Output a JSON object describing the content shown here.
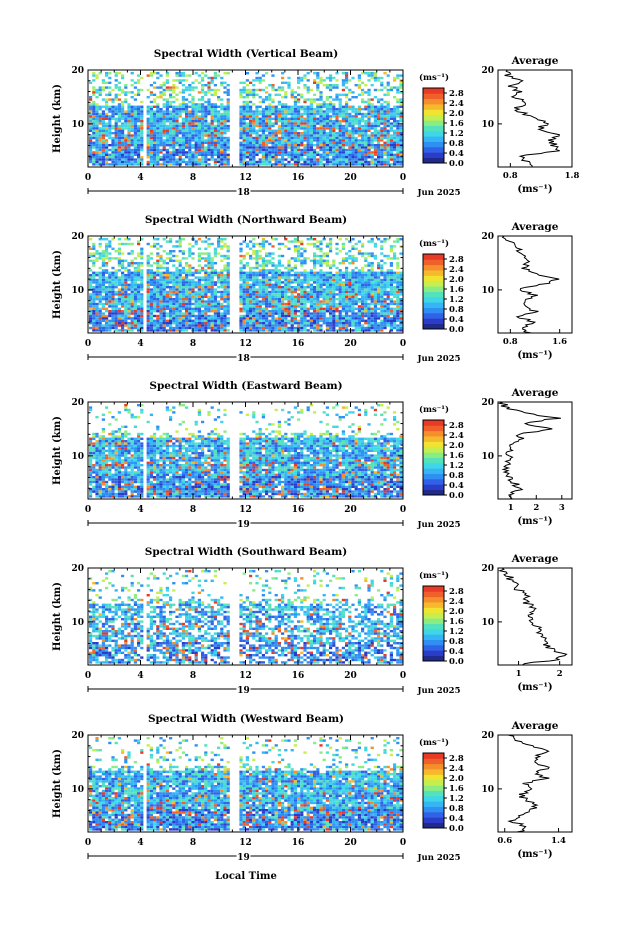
{
  "figure": {
    "x_label": "Local Time",
    "y_label": "Height (km)",
    "date_label": "Jun 2025",
    "x_ticks": [
      "0",
      "4",
      "8",
      "12",
      "16",
      "20",
      "0"
    ],
    "y_ticks": [
      "20",
      "10"
    ],
    "colorbar_unit": "(ms⁻¹)",
    "colorbar_ticks": [
      "2.8",
      "2.4",
      "2.0",
      "1.6",
      "1.2",
      "0.8",
      "0.4",
      "0.0"
    ],
    "colorbar_colors": [
      "#1f2a8a",
      "#2a3cc8",
      "#2f62e6",
      "#2f8ff2",
      "#35b5f4",
      "#3fd6e8",
      "#54e2bd",
      "#8cec84",
      "#c6ee4e",
      "#f0e433",
      "#f7b92c",
      "#f58f2b",
      "#f0602a",
      "#e83a26"
    ],
    "date_marker_values": [
      "18",
      "18",
      "19",
      "19",
      "19"
    ],
    "avg_title": "Average",
    "avg_unit": "(ms⁻¹)",
    "avg_y_ticks": [
      "20",
      "10"
    ]
  },
  "chart_data": [
    {
      "type": "heatmap",
      "title": "Spectral Width (Vertical Beam)",
      "x_range_hours": [
        0,
        24
      ],
      "y_range_km": [
        2,
        20
      ],
      "data_gaps_hours": [
        [
          4.1,
          4.4
        ],
        [
          10.6,
          11.5
        ]
      ],
      "colorbar_range": [
        0.0,
        3.0
      ],
      "average_profile": {
        "xlim": [
          0.6,
          1.8
        ],
        "x_ticks": [
          "0.8",
          "1.8"
        ],
        "height_km": [
          2,
          3,
          4,
          5,
          6,
          7,
          8,
          9,
          10,
          11,
          12,
          13,
          14,
          15,
          16,
          17,
          18,
          19,
          20
        ],
        "value": [
          1.15,
          1.05,
          0.95,
          1.6,
          1.5,
          1.45,
          1.55,
          1.3,
          1.35,
          1.25,
          1.0,
          0.9,
          1.05,
          0.85,
          0.95,
          0.8,
          1.0,
          0.75,
          0.75
        ]
      }
    },
    {
      "type": "heatmap",
      "title": "Spectral Width (Northward Beam)",
      "x_range_hours": [
        0,
        24
      ],
      "y_range_km": [
        2,
        20
      ],
      "data_gaps_hours": [
        [
          4.1,
          4.4
        ],
        [
          10.6,
          11.5
        ]
      ],
      "colorbar_range": [
        0.0,
        3.0
      ],
      "average_profile": {
        "xlim": [
          0.6,
          1.8
        ],
        "x_ticks": [
          "0.8",
          "1.6"
        ],
        "height_km": [
          2,
          3,
          4,
          5,
          6,
          7,
          8,
          9,
          10,
          11,
          12,
          13,
          14,
          15,
          16,
          17,
          18,
          19,
          20
        ],
        "value": [
          1.1,
          1.0,
          1.15,
          0.95,
          1.2,
          1.1,
          1.05,
          1.2,
          0.95,
          1.3,
          1.6,
          1.2,
          1.0,
          1.1,
          1.05,
          0.95,
          0.9,
          0.75,
          0.7
        ]
      }
    },
    {
      "type": "heatmap",
      "title": "Spectral Width (Eastward Beam)",
      "x_range_hours": [
        0,
        24
      ],
      "y_range_km": [
        2,
        20
      ],
      "data_gaps_hours": [
        [
          4.1,
          4.4
        ],
        [
          10.6,
          11.5
        ]
      ],
      "colorbar_range": [
        0.0,
        3.0
      ],
      "average_profile": {
        "xlim": [
          0.5,
          3.4
        ],
        "x_ticks": [
          "1",
          "2",
          "3"
        ],
        "height_km": [
          2,
          3,
          4,
          5,
          6,
          7,
          8,
          9,
          10,
          11,
          12,
          13,
          14,
          15,
          16,
          17,
          18,
          19,
          20
        ],
        "value": [
          1.0,
          1.1,
          1.4,
          1.1,
          0.9,
          0.85,
          0.9,
          0.8,
          0.95,
          1.0,
          1.1,
          1.4,
          1.2,
          2.6,
          1.6,
          2.8,
          1.5,
          0.8,
          0.7
        ]
      }
    },
    {
      "type": "heatmap",
      "title": "Spectral Width (Southward Beam)",
      "x_range_hours": [
        0,
        24
      ],
      "y_range_km": [
        2,
        20
      ],
      "data_gaps_hours": [
        [
          4.1,
          4.4
        ],
        [
          10.6,
          11.5
        ]
      ],
      "colorbar_range": [
        0.0,
        3.0
      ],
      "average_profile": {
        "xlim": [
          0.5,
          2.3
        ],
        "x_ticks": [
          "1",
          "2"
        ],
        "height_km": [
          2,
          3,
          4,
          5,
          6,
          7,
          8,
          9,
          10,
          11,
          12,
          13,
          14,
          15,
          16,
          17,
          18,
          19,
          20
        ],
        "value": [
          1.0,
          1.9,
          2.1,
          1.8,
          1.6,
          1.7,
          1.4,
          1.5,
          1.3,
          1.2,
          1.45,
          1.3,
          1.1,
          1.2,
          1.0,
          0.9,
          0.8,
          0.7,
          0.6
        ]
      }
    },
    {
      "type": "heatmap",
      "title": "Spectral Width (Westward Beam)",
      "x_range_hours": [
        0,
        24
      ],
      "y_range_km": [
        2,
        20
      ],
      "data_gaps_hours": [
        [
          4.1,
          4.4
        ],
        [
          10.6,
          11.5
        ]
      ],
      "colorbar_range": [
        0.0,
        3.0
      ],
      "average_profile": {
        "xlim": [
          0.5,
          1.6
        ],
        "x_ticks": [
          "0.6",
          "1.4"
        ],
        "height_km": [
          2,
          3,
          4,
          5,
          6,
          7,
          8,
          9,
          10,
          11,
          12,
          13,
          14,
          15,
          16,
          17,
          18,
          19,
          20
        ],
        "value": [
          0.8,
          0.95,
          0.7,
          0.85,
          1.0,
          1.05,
          0.9,
          0.85,
          0.95,
          0.9,
          1.2,
          1.05,
          1.25,
          1.05,
          1.1,
          1.2,
          1.0,
          0.8,
          0.65
        ]
      }
    }
  ]
}
